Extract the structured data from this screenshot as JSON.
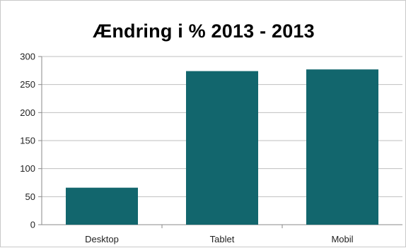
{
  "chart_data": {
    "type": "bar",
    "title": "Ændring i % 2013 - 2013",
    "categories": [
      "Desktop",
      "Tablet",
      "Mobil"
    ],
    "values": [
      66,
      274,
      277
    ],
    "ylim": [
      0,
      300
    ],
    "yticks": [
      0,
      50,
      100,
      150,
      200,
      250,
      300
    ],
    "grid": true,
    "legend": "none",
    "bar_color": "#12666d",
    "grid_color": "#bfbfbf",
    "axis_color": "#8a8a8a"
  }
}
